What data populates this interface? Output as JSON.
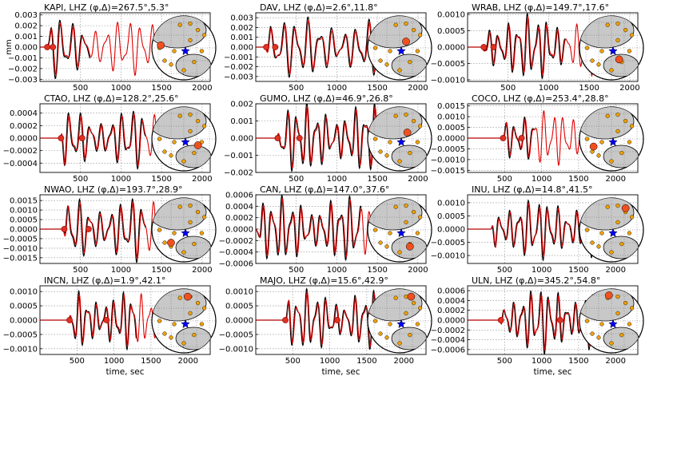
{
  "figure": {
    "ylabel_first": "mm",
    "xlabel_bottom": "time, sec",
    "colors": {
      "observed": "#000000",
      "synthetic": "#e00000",
      "marker": "#e03020",
      "station_dot": "#f0a000",
      "event_star": "#0000ee",
      "land": "#c8c8c8"
    }
  },
  "chart_data": [
    {
      "type": "line",
      "station": "KAPI",
      "title": "KAPI, LHZ (φ,Δ)=267.5°,5.3°",
      "xlim": [
        0,
        2100
      ],
      "ylim": [
        -0.0032,
        0.0032
      ],
      "xticks": [
        "500",
        "1000",
        "1500",
        "2000"
      ],
      "xtick_values": [
        500,
        1000,
        1500,
        2000
      ],
      "yticks": [
        "0.003",
        "0.002",
        "0.001",
        "0.000",
        "−0.001",
        "−0.002",
        "−0.003"
      ],
      "ytick_values": [
        0.003,
        0.002,
        0.001,
        0,
        -0.001,
        -0.002,
        -0.003
      ],
      "picks": [
        90,
        160
      ],
      "signal": {
        "start": 80,
        "end": 620,
        "tail": 1550,
        "amp": 0.003,
        "period": 140
      },
      "series": [],
      "map_highlight": [
        0.14,
        0.46
      ]
    },
    {
      "type": "line",
      "station": "DAV",
      "title": "DAV, LHZ (φ,Δ)=2.6°,11.8°",
      "xlim": [
        0,
        2100
      ],
      "ylim": [
        -0.0035,
        0.0035
      ],
      "xticks": [
        "500",
        "1000",
        "1500",
        "2000"
      ],
      "xtick_values": [
        500,
        1000,
        1500,
        2000
      ],
      "yticks": [
        "0.003",
        "0.002",
        "0.001",
        "0.000",
        "−0.001",
        "−0.002",
        "−0.003"
      ],
      "ytick_values": [
        0.003,
        0.002,
        0.001,
        0,
        -0.001,
        -0.002,
        -0.003
      ],
      "picks": [
        130,
        240
      ],
      "signal": {
        "start": 120,
        "end": 1500,
        "tail": 1500,
        "amp": 0.0032,
        "period": 150
      },
      "series": [],
      "map_highlight": [
        0.6,
        0.4
      ]
    },
    {
      "type": "line",
      "station": "WRAB",
      "title": "WRAB, LHZ (φ,Δ)=149.7°,17.6°",
      "xlim": [
        0,
        2100
      ],
      "ylim": [
        -0.00105,
        0.00105
      ],
      "xticks": [
        "500",
        "1000",
        "1500",
        "2000"
      ],
      "xtick_values": [
        500,
        1000,
        1500,
        2000
      ],
      "yticks": [
        "0.0010",
        "0.0005",
        "0.0000",
        "−0.0005",
        "−0.0010"
      ],
      "ytick_values": [
        0.001,
        0.0005,
        0,
        -0.0005,
        -0.001
      ],
      "picks": [
        200,
        320
      ],
      "signal": {
        "start": 180,
        "end": 1200,
        "tail": 1550,
        "amp": 0.00105,
        "period": 120
      },
      "series": [],
      "map_highlight": [
        0.62,
        0.68
      ]
    },
    {
      "type": "line",
      "station": "CTAO",
      "title": "CTAO, LHZ (φ,Δ)=128.2°,25.6°",
      "xlim": [
        0,
        2100
      ],
      "ylim": [
        -0.00055,
        0.00055
      ],
      "xticks": [
        "500",
        "1000",
        "1500",
        "2000"
      ],
      "xtick_values": [
        500,
        1000,
        1500,
        2000
      ],
      "yticks": [
        "0.0004",
        "0.0002",
        "0.0000",
        "−0.0002",
        "−0.0004"
      ],
      "ytick_values": [
        0.0004,
        0.0002,
        0,
        -0.0002,
        -0.0004
      ],
      "picks": [
        260,
        520
      ],
      "signal": {
        "start": 250,
        "end": 1300,
        "tail": 1550,
        "amp": 0.0005,
        "period": 130
      },
      "series": [],
      "map_highlight": [
        0.72,
        0.6
      ]
    },
    {
      "type": "line",
      "station": "GUMO",
      "title": "GUMO, LHZ (φ,Δ)=46.9°,26.8°",
      "xlim": [
        0,
        2100
      ],
      "ylim": [
        -0.002,
        0.002
      ],
      "xticks": [
        "500",
        "1000",
        "1500",
        "2000"
      ],
      "xtick_values": [
        500,
        1000,
        1500,
        2000
      ],
      "yticks": [
        "0.002",
        "0.001",
        "0.000",
        "−0.001",
        "−0.002"
      ],
      "ytick_values": [
        0.002,
        0.001,
        0,
        -0.001,
        -0.002
      ],
      "picks": [
        270,
        540
      ],
      "signal": {
        "start": 260,
        "end": 1500,
        "tail": 1500,
        "amp": 0.0021,
        "period": 120
      },
      "series": [],
      "map_highlight": [
        0.62,
        0.4
      ]
    },
    {
      "type": "line",
      "station": "COCO",
      "title": "COCO, LHZ (φ,Δ)=253.4°,28.8°",
      "xlim": [
        0,
        2300
      ],
      "ylim": [
        -0.0016,
        0.0016
      ],
      "xticks": [
        "500",
        "1000",
        "1500",
        "2000"
      ],
      "xtick_values": [
        500,
        1000,
        1500,
        2000
      ],
      "yticks": [
        "0.0015",
        "0.0010",
        "0.0005",
        "0.0000",
        "−0.0005",
        "−0.0010",
        "−0.0015"
      ],
      "ytick_values": [
        0.0015,
        0.001,
        0.0005,
        0,
        -0.0005,
        -0.001,
        -0.0015
      ],
      "picks": [
        480,
        730
      ],
      "signal": {
        "start": 470,
        "end": 900,
        "tail": 1650,
        "amp": 0.0015,
        "period": 130
      },
      "series": [],
      "map_highlight": [
        0.22,
        0.62
      ]
    },
    {
      "type": "line",
      "station": "NWAO",
      "title": "NWAO, LHZ (φ,Δ)=193.7°,28.9°",
      "xlim": [
        0,
        2100
      ],
      "ylim": [
        -0.0018,
        0.0018
      ],
      "xticks": [
        "500",
        "1000",
        "1500",
        "2000"
      ],
      "xtick_values": [
        500,
        1000,
        1500,
        2000
      ],
      "yticks": [
        "0.0015",
        "0.0010",
        "0.0005",
        "0.0000",
        "−0.0005",
        "−0.0010",
        "−0.0015"
      ],
      "ytick_values": [
        0.0015,
        0.001,
        0.0005,
        0,
        -0.0005,
        -0.001,
        -0.0015
      ],
      "picks": [
        300,
        600
      ],
      "signal": {
        "start": 290,
        "end": 1300,
        "tail": 1550,
        "amp": 0.0018,
        "period": 130
      },
      "series": [],
      "map_highlight": [
        0.3,
        0.7
      ]
    },
    {
      "type": "line",
      "station": "CAN",
      "title": "CAN, LHZ (φ,Δ)=147.0°,37.6°",
      "xlim": [
        0,
        2100
      ],
      "ylim": [
        -0.0006,
        0.0006
      ],
      "xticks": [
        "500",
        "1000",
        "1500",
        "2000"
      ],
      "xtick_values": [
        500,
        1000,
        1500,
        2000
      ],
      "yticks": [
        "0.0006",
        "0.0004",
        "0.0002",
        "0.0000",
        "−0.0002",
        "−0.0004",
        "−0.0006"
      ],
      "ytick_values": [
        0.0006,
        0.0004,
        0.0002,
        0,
        -0.0002,
        -0.0004,
        -0.0006
      ],
      "picks": [],
      "signal": {
        "start": 0,
        "end": 1300,
        "tail": 1500,
        "amp": 0.0006,
        "period": 120
      },
      "series": [],
      "map_highlight": [
        0.66,
        0.76
      ]
    },
    {
      "type": "line",
      "station": "INU",
      "title": "INU, LHZ (φ,Δ)=14.8°,41.5°",
      "xlim": [
        0,
        2300
      ],
      "ylim": [
        -0.0013,
        0.0013
      ],
      "xticks": [
        "500",
        "1000",
        "1500",
        "2000"
      ],
      "xtick_values": [
        500,
        1000,
        1500,
        2000
      ],
      "yticks": [
        "0.0010",
        "0.0005",
        "0.0000",
        "−0.0005",
        "−0.0010"
      ],
      "ytick_values": [
        0.001,
        0.0005,
        0,
        -0.0005,
        -0.001
      ],
      "picks": [],
      "signal": {
        "start": 320,
        "end": 1750,
        "tail": 1750,
        "amp": 0.0012,
        "period": 130
      },
      "series": [],
      "map_highlight": [
        0.72,
        0.16
      ]
    },
    {
      "type": "line",
      "station": "INCN",
      "title": "INCN, LHZ (φ,Δ)=1.9°,42.1°",
      "xlim": [
        0,
        2300
      ],
      "ylim": [
        -0.0012,
        0.0012
      ],
      "xticks": [
        "500",
        "1000",
        "1500",
        "2000"
      ],
      "xtick_values": [
        500,
        1000,
        1500,
        2000
      ],
      "yticks": [
        "0.0010",
        "0.0005",
        "0.0000",
        "−0.0005",
        "−0.0010"
      ],
      "ytick_values": [
        0.001,
        0.0005,
        0,
        -0.0005,
        -0.001
      ],
      "picks": [
        400,
        900
      ],
      "signal": {
        "start": 390,
        "end": 1300,
        "tail": 1650,
        "amp": 0.0011,
        "period": 120
      },
      "series": [],
      "map_highlight": [
        0.56,
        0.12
      ]
    },
    {
      "type": "line",
      "station": "MAJO",
      "title": "MAJO, LHZ (φ,Δ)=15.6°,42.9°",
      "xlim": [
        0,
        2300
      ],
      "ylim": [
        -0.0012,
        0.0012
      ],
      "xticks": [
        "500",
        "1000",
        "1500",
        "2000"
      ],
      "xtick_values": [
        500,
        1000,
        1500,
        2000
      ],
      "yticks": [
        "0.0010",
        "0.0005",
        "0.0000",
        "−0.0005",
        "−0.0010"
      ],
      "ytick_values": [
        0.001,
        0.0005,
        0,
        -0.0005,
        -0.001
      ],
      "picks": [
        400,
        1100
      ],
      "signal": {
        "start": 390,
        "end": 1650,
        "tail": 1650,
        "amp": 0.0011,
        "period": 130
      },
      "series": [],
      "map_highlight": [
        0.68,
        0.12
      ]
    },
    {
      "type": "line",
      "station": "ULN",
      "title": "ULN, LHZ (φ,Δ)=345.2°,54.8°",
      "xlim": [
        0,
        2300
      ],
      "ylim": [
        -0.0007,
        0.0007
      ],
      "xticks": [
        "500",
        "1000",
        "1500",
        "2000"
      ],
      "xtick_values": [
        500,
        1000,
        1500,
        2000
      ],
      "yticks": [
        "0.0006",
        "0.0004",
        "0.0002",
        "0.0000",
        "−0.0002",
        "−0.0004",
        "−0.0006"
      ],
      "ytick_values": [
        0.0006,
        0.0004,
        0.0002,
        0,
        -0.0002,
        -0.0004,
        -0.0006
      ],
      "picks": [
        450,
        1250
      ],
      "signal": {
        "start": 440,
        "end": 1800,
        "tail": 1800,
        "amp": 0.0007,
        "period": 120
      },
      "series": [],
      "map_highlight": [
        0.46,
        0.1
      ]
    }
  ]
}
